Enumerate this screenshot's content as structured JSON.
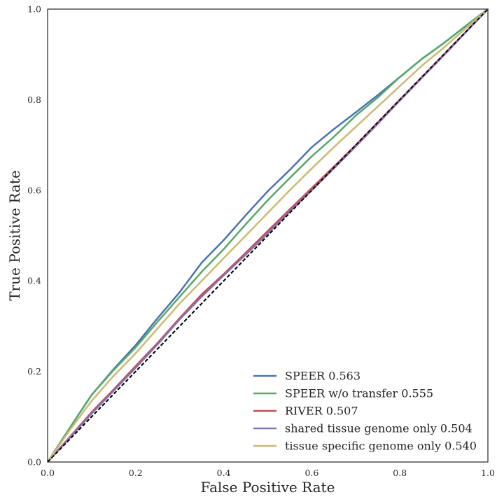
{
  "chart_data": {
    "type": "line",
    "title": "",
    "xlabel": "False Positive Rate",
    "ylabel": "True Positive Rate",
    "xlim": [
      0,
      1
    ],
    "ylim": [
      0,
      1
    ],
    "xticks": [
      "0.0",
      "0.2",
      "0.4",
      "0.6",
      "0.8",
      "1.0"
    ],
    "yticks": [
      "0.0",
      "0.2",
      "0.4",
      "0.6",
      "0.8",
      "1.0"
    ],
    "grid": false,
    "legend_position": "lower-right",
    "diagonal": {
      "style": "dashed",
      "color": "#000000"
    },
    "series": [
      {
        "name": "SPEER 0.563",
        "color": "#4c72b0",
        "points": [
          [
            0,
            0
          ],
          [
            0.05,
            0.075
          ],
          [
            0.1,
            0.148
          ],
          [
            0.15,
            0.205
          ],
          [
            0.2,
            0.258
          ],
          [
            0.25,
            0.318
          ],
          [
            0.3,
            0.375
          ],
          [
            0.35,
            0.44
          ],
          [
            0.4,
            0.49
          ],
          [
            0.45,
            0.545
          ],
          [
            0.5,
            0.598
          ],
          [
            0.55,
            0.645
          ],
          [
            0.6,
            0.695
          ],
          [
            0.65,
            0.735
          ],
          [
            0.7,
            0.772
          ],
          [
            0.75,
            0.81
          ],
          [
            0.8,
            0.85
          ],
          [
            0.85,
            0.89
          ],
          [
            0.9,
            0.925
          ],
          [
            0.95,
            0.963
          ],
          [
            1,
            1
          ]
        ]
      },
      {
        "name": "SPEER w/o transfer 0.555",
        "color": "#55a868",
        "points": [
          [
            0,
            0
          ],
          [
            0.05,
            0.075
          ],
          [
            0.1,
            0.148
          ],
          [
            0.15,
            0.203
          ],
          [
            0.2,
            0.253
          ],
          [
            0.25,
            0.31
          ],
          [
            0.3,
            0.365
          ],
          [
            0.35,
            0.42
          ],
          [
            0.4,
            0.47
          ],
          [
            0.45,
            0.525
          ],
          [
            0.5,
            0.578
          ],
          [
            0.55,
            0.627
          ],
          [
            0.6,
            0.675
          ],
          [
            0.65,
            0.718
          ],
          [
            0.7,
            0.765
          ],
          [
            0.75,
            0.805
          ],
          [
            0.8,
            0.85
          ],
          [
            0.85,
            0.89
          ],
          [
            0.9,
            0.925
          ],
          [
            0.95,
            0.963
          ],
          [
            1,
            1
          ]
        ]
      },
      {
        "name": "RIVER 0.507",
        "color": "#c44e52",
        "points": [
          [
            0,
            0
          ],
          [
            0.05,
            0.055
          ],
          [
            0.1,
            0.11
          ],
          [
            0.15,
            0.16
          ],
          [
            0.2,
            0.212
          ],
          [
            0.25,
            0.263
          ],
          [
            0.3,
            0.318
          ],
          [
            0.35,
            0.37
          ],
          [
            0.4,
            0.415
          ],
          [
            0.45,
            0.462
          ],
          [
            0.5,
            0.51
          ],
          [
            0.55,
            0.558
          ],
          [
            0.6,
            0.605
          ],
          [
            0.65,
            0.652
          ],
          [
            0.7,
            0.7
          ],
          [
            0.75,
            0.75
          ],
          [
            0.8,
            0.8
          ],
          [
            0.85,
            0.85
          ],
          [
            0.9,
            0.9
          ],
          [
            0.95,
            0.95
          ],
          [
            1,
            1
          ]
        ]
      },
      {
        "name": "shared tissue genome only 0.504",
        "color": "#8172b2",
        "points": [
          [
            0,
            0
          ],
          [
            0.05,
            0.053
          ],
          [
            0.1,
            0.107
          ],
          [
            0.15,
            0.157
          ],
          [
            0.2,
            0.208
          ],
          [
            0.25,
            0.26
          ],
          [
            0.3,
            0.315
          ],
          [
            0.35,
            0.365
          ],
          [
            0.4,
            0.412
          ],
          [
            0.45,
            0.458
          ],
          [
            0.5,
            0.505
          ],
          [
            0.55,
            0.553
          ],
          [
            0.6,
            0.6
          ],
          [
            0.65,
            0.648
          ],
          [
            0.7,
            0.697
          ],
          [
            0.75,
            0.747
          ],
          [
            0.8,
            0.798
          ],
          [
            0.85,
            0.848
          ],
          [
            0.9,
            0.898
          ],
          [
            0.95,
            0.949
          ],
          [
            1,
            1
          ]
        ]
      },
      {
        "name": "tissue specific genome only 0.540",
        "color": "#ccb974",
        "points": [
          [
            0,
            0
          ],
          [
            0.05,
            0.07
          ],
          [
            0.1,
            0.135
          ],
          [
            0.15,
            0.19
          ],
          [
            0.2,
            0.24
          ],
          [
            0.25,
            0.295
          ],
          [
            0.3,
            0.35
          ],
          [
            0.35,
            0.4
          ],
          [
            0.4,
            0.45
          ],
          [
            0.45,
            0.5
          ],
          [
            0.5,
            0.55
          ],
          [
            0.55,
            0.6
          ],
          [
            0.6,
            0.648
          ],
          [
            0.65,
            0.695
          ],
          [
            0.7,
            0.74
          ],
          [
            0.75,
            0.785
          ],
          [
            0.8,
            0.83
          ],
          [
            0.85,
            0.875
          ],
          [
            0.9,
            0.915
          ],
          [
            0.95,
            0.958
          ],
          [
            1,
            1
          ]
        ]
      }
    ]
  }
}
